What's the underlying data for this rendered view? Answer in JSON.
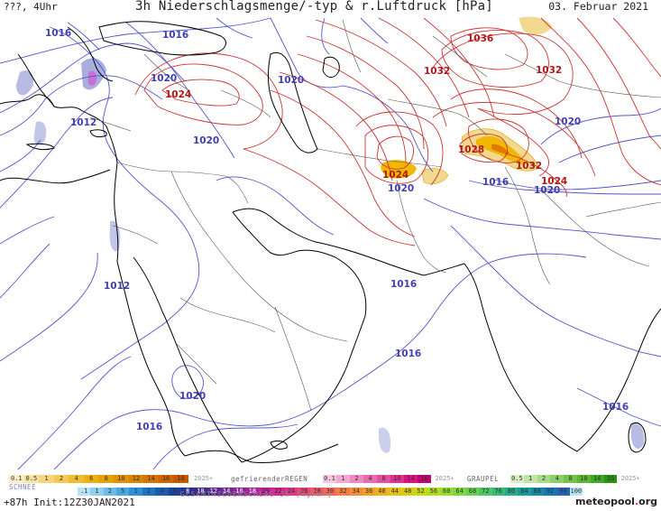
{
  "header": {
    "left": "???, 4Uhr",
    "title": "3h Niederschlagsmenge/-typ & r.Luftdruck [hPa]",
    "date": "03. Februar 2021"
  },
  "colors": {
    "isobar_low": "#5555cc",
    "isobar_high": "#cc3333",
    "label_low": "#4040b0",
    "label_high": "#b01818",
    "coast": "#000000",
    "border": "#555555",
    "rain_light": "#f3d88f",
    "rain_med": "#f0b800",
    "rain_heavy": "#e07a00",
    "snow": "#9aa0d8",
    "mixed": "#c86fd8"
  },
  "pressure_labels": [
    {
      "text": "1016",
      "kind": "low"
    },
    {
      "text": "1016",
      "kind": "low"
    },
    {
      "text": "1020",
      "kind": "low"
    },
    {
      "text": "1024",
      "kind": "high"
    },
    {
      "text": "1020",
      "kind": "low"
    },
    {
      "text": "1012",
      "kind": "low"
    },
    {
      "text": "1020",
      "kind": "low"
    },
    {
      "text": "1036",
      "kind": "high"
    },
    {
      "text": "1032",
      "kind": "high"
    },
    {
      "text": "1032",
      "kind": "high"
    },
    {
      "text": "1020",
      "kind": "low"
    },
    {
      "text": "1028",
      "kind": "high"
    },
    {
      "text": "1032",
      "kind": "high"
    },
    {
      "text": "1024",
      "kind": "high"
    },
    {
      "text": "1024",
      "kind": "high"
    },
    {
      "text": "1020",
      "kind": "low"
    },
    {
      "text": "1016",
      "kind": "low"
    },
    {
      "text": "1020",
      "kind": "low"
    },
    {
      "text": "1012",
      "kind": "low"
    },
    {
      "text": "1016",
      "kind": "low"
    },
    {
      "text": "1016",
      "kind": "low"
    },
    {
      "text": "1020",
      "kind": "low"
    },
    {
      "text": "1016",
      "kind": "low"
    },
    {
      "text": "1016",
      "kind": "low"
    }
  ],
  "legend": {
    "rain_values": [
      "0.1",
      "0.5",
      "1",
      "2",
      "4",
      "6",
      "8",
      "10",
      "12",
      "14",
      "16",
      "18",
      "2025+"
    ],
    "snow_label": "SCHNEE",
    "freezing_label": "gefrierenderREGEN",
    "freezing_values": [
      "0.1",
      "1",
      "2",
      "4",
      "8",
      "10",
      "14",
      "16",
      "2025+"
    ],
    "graupel_label": "GRAUPEL",
    "graupel_values": [
      "0.5",
      "1",
      "2",
      "4",
      "8",
      "10",
      "14",
      "16",
      "2025+"
    ],
    "total_values": [
      ".1",
      "1",
      "2",
      "5",
      "1",
      "2",
      "4",
      "6",
      "8",
      "10",
      "12",
      "14",
      "16",
      "18",
      "20",
      "22",
      "24",
      "26",
      "28",
      "30",
      "32",
      "34",
      "36",
      "40",
      "44",
      "48",
      "52",
      "56",
      "60",
      "64",
      "68",
      "72",
      "76",
      "80",
      "84",
      "88",
      "92",
      "96",
      "100"
    ],
    "total_label": "GESAMTNIEDERSCHLAG 3h [kg/m²]",
    "forecast": "+87h  Init:12Z30JAN2021",
    "logo_main": "meteopool",
    "logo_dot": ".",
    "logo_tld": "org"
  }
}
